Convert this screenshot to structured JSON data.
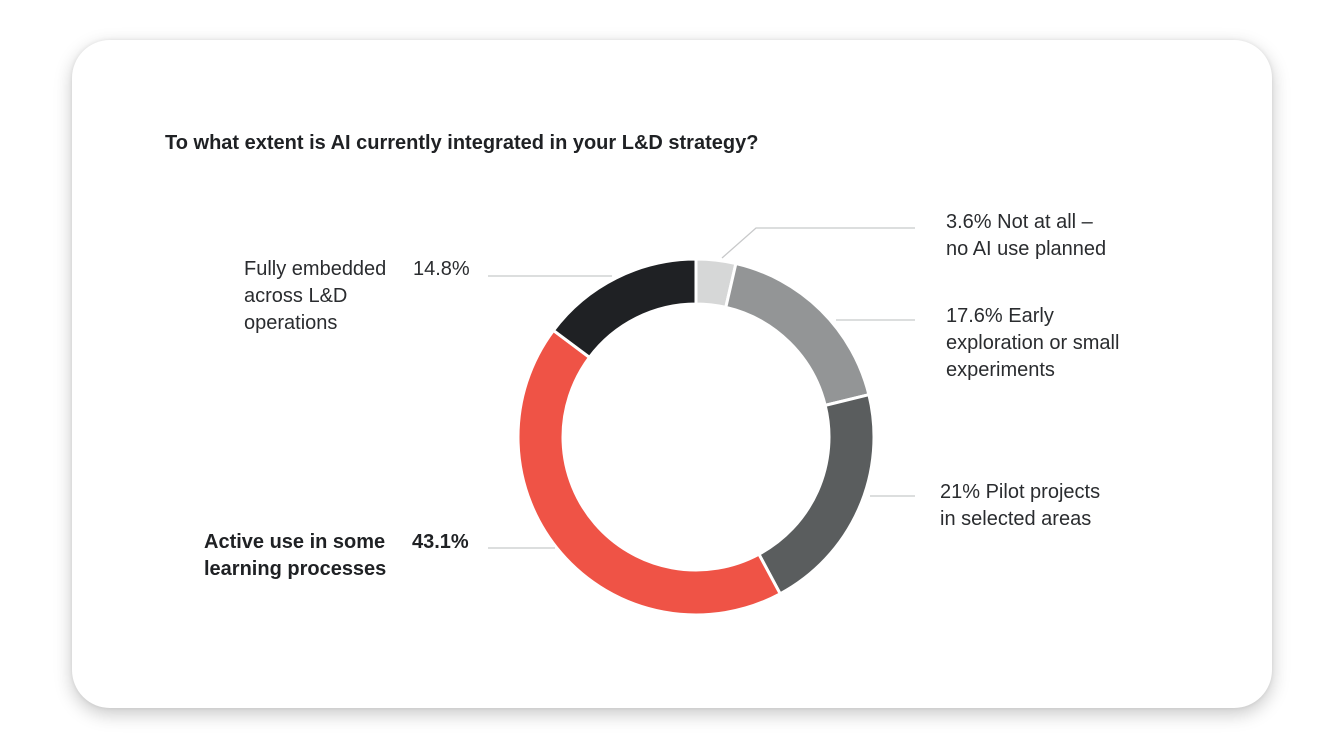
{
  "chart_data": {
    "type": "pie",
    "title": "To what extent is AI currently integrated in your L&D strategy?",
    "start_angle_deg": 0,
    "direction": "clockwise",
    "slices": [
      {
        "label": [
          "Not at all –",
          "no AI use planned"
        ],
        "value": 3.6,
        "value_label": "3.6%",
        "color": "#d6d7d7"
      },
      {
        "label": [
          "Early",
          "exploration or small",
          "experiments"
        ],
        "value": 17.6,
        "value_label": "17.6%",
        "color": "#939596"
      },
      {
        "label": [
          "Pilot projects",
          "in selected areas"
        ],
        "value": 21.0,
        "value_label": "21%",
        "color": "#5a5d5e"
      },
      {
        "label": [
          "Active use in some",
          "learning processes"
        ],
        "value": 43.1,
        "value_label": "43.1%",
        "color": "#ef5346",
        "emphasis": true
      },
      {
        "label": [
          "Fully embedded",
          "across L&D",
          "operations"
        ],
        "value": 14.8,
        "value_label": "14.8%",
        "color": "#1f2124"
      }
    ],
    "leader_line_color": "#c8c9ca"
  }
}
